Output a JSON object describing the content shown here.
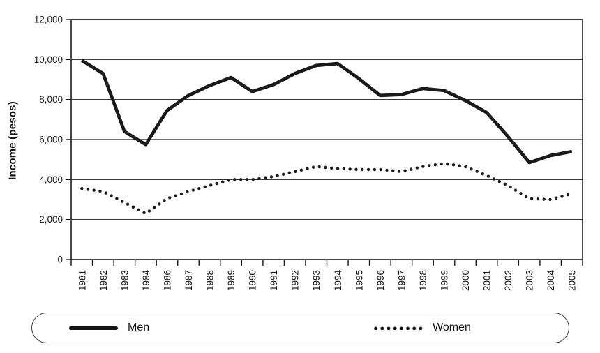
{
  "figure": {
    "background": "#ffffff",
    "line_color": "#1a1a1a",
    "grid_color": "#1a1a1a"
  },
  "legend": {
    "men": "Men",
    "women": "Women"
  },
  "chart_data": {
    "type": "line",
    "title": "",
    "xlabel": "",
    "ylabel": "Income (pesos)",
    "ylim": [
      0,
      12000
    ],
    "ytick_step": 2000,
    "ytick_labels": [
      "0",
      "2,000",
      "4,000",
      "6,000",
      "8,000",
      "10,000",
      "12,000"
    ],
    "grid": "horizontal",
    "legend_position": "bottom",
    "categories": [
      "1981",
      "1982",
      "1983",
      "1984",
      "1986",
      "1987",
      "1988",
      "1989",
      "1990",
      "1991",
      "1992",
      "1993",
      "1994",
      "1995",
      "1996",
      "1997",
      "1998",
      "1999",
      "2000",
      "2001",
      "2002",
      "2003",
      "2004",
      "2005"
    ],
    "series": [
      {
        "name": "Men",
        "style": "solid",
        "values": [
          9950,
          9300,
          6400,
          5750,
          7450,
          8200,
          8700,
          9100,
          8400,
          8750,
          9300,
          9700,
          9800,
          9050,
          8200,
          8250,
          8550,
          8450,
          7950,
          7350,
          6150,
          4850,
          5200,
          5400
        ]
      },
      {
        "name": "Women",
        "style": "dotted",
        "values": [
          3550,
          3400,
          2850,
          2300,
          3050,
          3400,
          3700,
          4000,
          4000,
          4150,
          4400,
          4650,
          4550,
          4500,
          4500,
          4400,
          4650,
          4800,
          4650,
          4200,
          3700,
          3050,
          3000,
          3300
        ]
      }
    ]
  }
}
